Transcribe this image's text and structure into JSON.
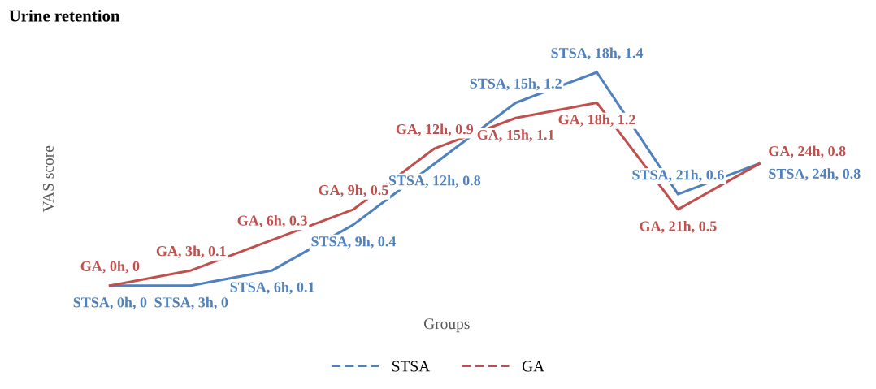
{
  "chart_data": {
    "type": "line",
    "title": "Urine retention",
    "xlabel": "Groups",
    "ylabel": "VAS score",
    "categories": [
      null,
      null,
      null,
      null,
      null,
      null,
      null,
      null,
      null
    ],
    "series": [
      {
        "name": "STSA",
        "color": "#4f81bd",
        "values": [
          0,
          0,
          0.1,
          0.4,
          0.8,
          1.2,
          1.4,
          0.6,
          0.8
        ],
        "value_labels": [
          "STSA, 0h, 0",
          "STSA, 3h, 0",
          "STSA, 6h, 0.1",
          "STSA, 9h, 0.4",
          "STSA, 12h, 0.8",
          "STSA, 15h, 1.2",
          "STSA, 18h, 1.4",
          "STSA, 21h, 0.6",
          "STSA, 24h, 0.8"
        ]
      },
      {
        "name": "GA",
        "color": "#c0504d",
        "values": [
          0,
          0.1,
          0.3,
          0.5,
          0.9,
          1.1,
          1.2,
          0.5,
          0.8
        ],
        "value_labels": [
          "GA, 0h, 0",
          "GA, 3h, 0.1",
          "GA, 6h, 0.3",
          "GA, 9h, 0.5",
          "GA, 12h, 0.9",
          "GA, 15h, 1.1",
          "GA, 18h, 1.2",
          "GA, 21h, 0.5",
          "GA, 24h, 0.8"
        ]
      }
    ],
    "tick_labels": false,
    "grid": false,
    "legend": "bottom",
    "line_style": "solid",
    "marker": "none"
  }
}
